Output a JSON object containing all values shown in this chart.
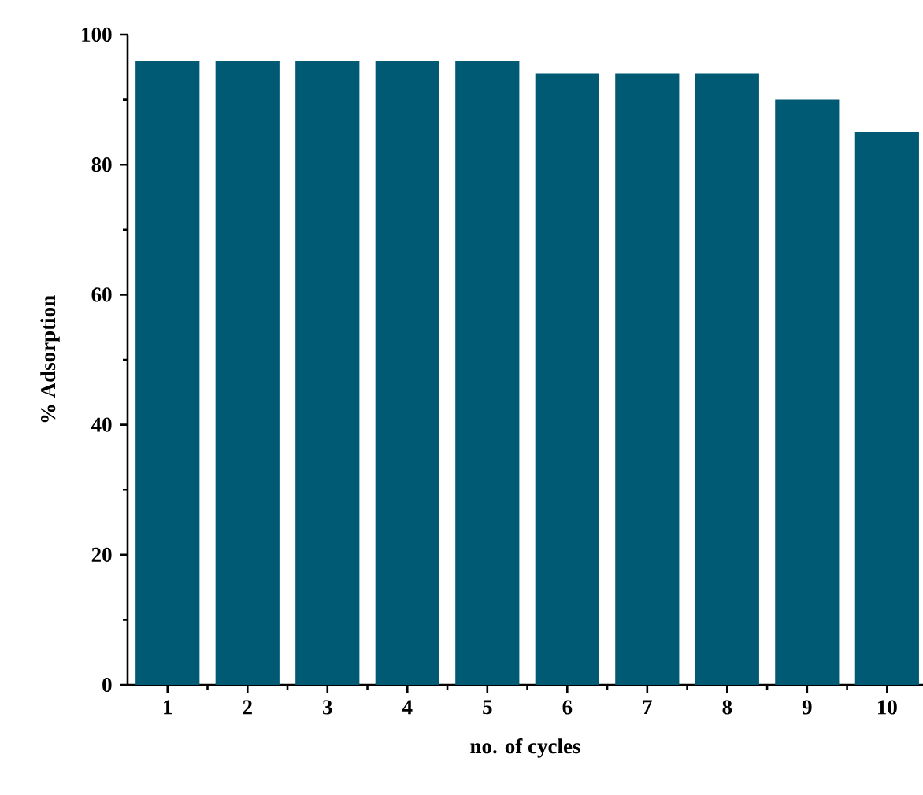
{
  "chart_data": {
    "type": "bar",
    "xlabel": "no. of cycles",
    "ylabel": "% Adsorption",
    "x": [
      1,
      2,
      3,
      4,
      5,
      6,
      7,
      8,
      9,
      10
    ],
    "values": [
      96,
      96,
      96,
      96,
      96,
      94,
      94,
      94,
      90,
      85
    ],
    "color": "#005a74",
    "xlim": [
      0.5,
      10.45
    ],
    "ylim": [
      0,
      100
    ],
    "xticks": [
      1,
      2,
      3,
      4,
      5,
      6,
      7,
      8,
      9,
      10
    ],
    "yticks": [
      0,
      20,
      40,
      60,
      80,
      100
    ],
    "grid": false
  }
}
